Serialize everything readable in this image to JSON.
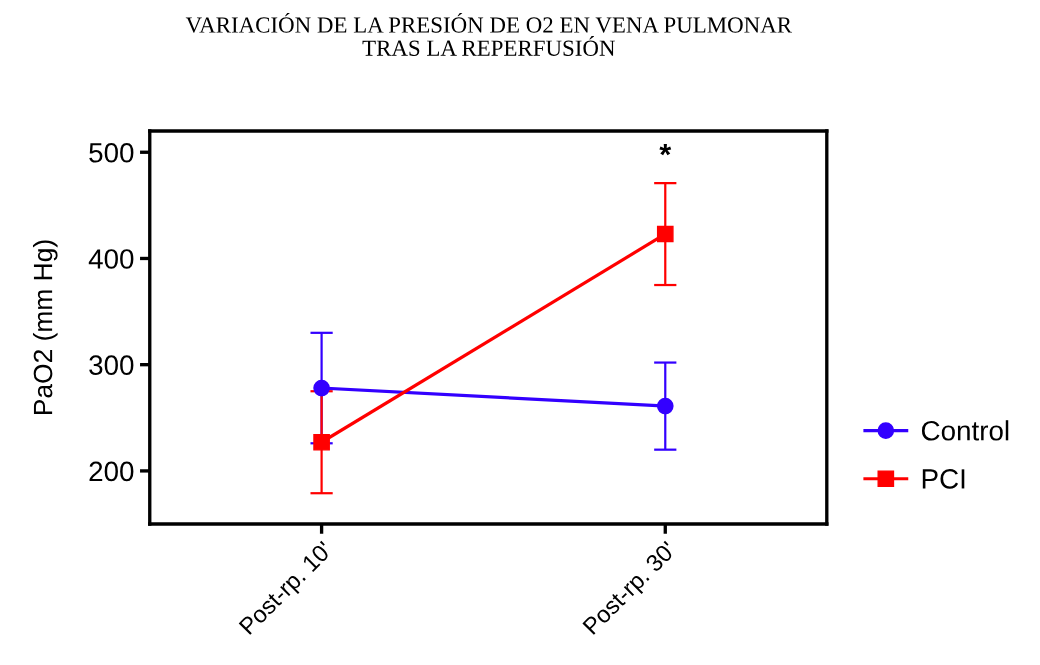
{
  "chart_data": {
    "type": "line",
    "title": "VARIACIÓN DE LA PRESIÓN DE O2 EN VENA PULMONAR\nTRAS LA REPERFUSIÓN",
    "ylabel": "PaO2 (mm Hg)",
    "categories": [
      "Post-rp. 10'",
      "Post-rp. 30'"
    ],
    "series": [
      {
        "name": "Control",
        "color": "#3300ff",
        "marker": "circle",
        "values": [
          278,
          261
        ],
        "errors": [
          52,
          41
        ]
      },
      {
        "name": "PCI",
        "color": "#ff0000",
        "marker": "square",
        "values": [
          227,
          423
        ],
        "errors": [
          48,
          48
        ]
      }
    ],
    "ylim": [
      150,
      520
    ],
    "yticks": [
      200,
      300,
      400,
      500
    ],
    "annotations": [
      "*"
    ],
    "legend": "right",
    "grid": false,
    "line_style": "solid"
  }
}
